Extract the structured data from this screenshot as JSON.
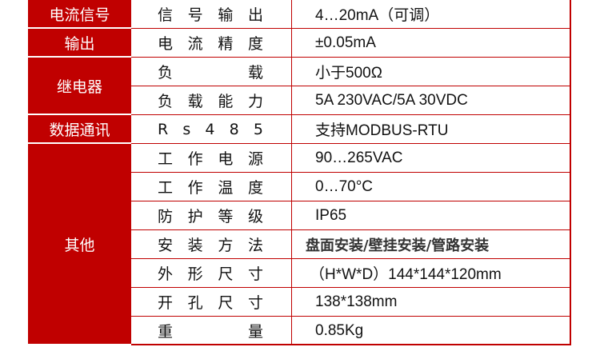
{
  "accent_color": "#c00000",
  "groups": [
    {
      "label": "电流信号",
      "rows": 1
    },
    {
      "label": "输出",
      "rows": 1
    },
    {
      "label": "继电器",
      "rows": 2
    },
    {
      "label": "数据通讯",
      "rows": 1
    },
    {
      "label": "其他",
      "rows": 7
    }
  ],
  "rows": [
    {
      "label": "信号输出",
      "value": "4…20mA（可调）"
    },
    {
      "label": "电流精度",
      "value": "±0.05mA"
    },
    {
      "label": "负载",
      "value": "小于500Ω"
    },
    {
      "label": "负载能力",
      "value": "5A 230VAC/5A 30VDC"
    },
    {
      "label": "Rs485",
      "value": "支持MODBUS-RTU"
    },
    {
      "label": "工作电源",
      "value": "90…265VAC"
    },
    {
      "label": "工作温度",
      "value": "0…70°C"
    },
    {
      "label": "防护等级",
      "value": "IP65"
    },
    {
      "label": "安装方法",
      "value": "盘面安装/壁挂安装/管路安装"
    },
    {
      "label": "外形尺寸",
      "value": "（H*W*D）144*144*120mm"
    },
    {
      "label": "开孔尺寸",
      "value": "138*138mm"
    },
    {
      "label": "重量",
      "value": "0.85Kg"
    }
  ]
}
